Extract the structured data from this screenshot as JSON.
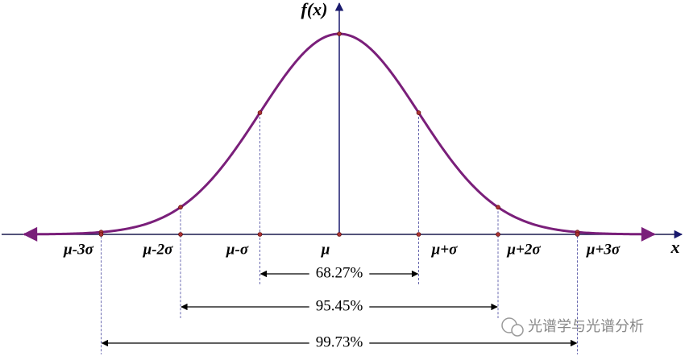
{
  "axis_labels": {
    "y": "f(x)",
    "x": "x"
  },
  "ticks": [
    "μ-3σ",
    "μ-2σ",
    "μ-σ",
    "μ",
    "μ+σ",
    "μ+2σ",
    "μ+3σ"
  ],
  "ranges": [
    {
      "label": "68.27%"
    },
    {
      "label": "95.45%"
    },
    {
      "label": "99.73%"
    }
  ],
  "watermark": "光谱学与光谱分析"
}
